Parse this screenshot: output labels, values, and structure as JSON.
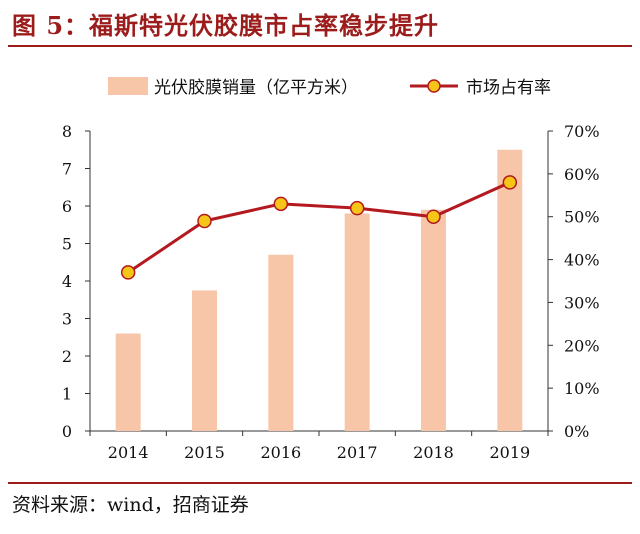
{
  "figure": {
    "title": "图 5：福斯特光伏胶膜市占率稳步提升",
    "source": "资料来源：wind，招商证券"
  },
  "colors": {
    "bar": "#f7c6a8",
    "line": "#b3191f",
    "marker_fill": "#f5c518",
    "accent": "#9c1c1c"
  },
  "chart_data": {
    "type": "bar+line",
    "categories": [
      "2014",
      "2015",
      "2016",
      "2017",
      "2018",
      "2019"
    ],
    "series": [
      {
        "name": "光伏胶膜销量（亿平方米）",
        "type": "bar",
        "axis": "left",
        "values": [
          2.6,
          3.75,
          4.7,
          5.8,
          5.9,
          7.5
        ]
      },
      {
        "name": "市场占有率",
        "type": "line",
        "axis": "right",
        "values": [
          37,
          49,
          53,
          52,
          50,
          58
        ]
      }
    ],
    "y_left": {
      "min": 0,
      "max": 8,
      "ticks": [
        "0",
        "1",
        "2",
        "3",
        "4",
        "5",
        "6",
        "7",
        "8"
      ]
    },
    "y_right": {
      "min": 0,
      "max": 70,
      "ticks": [
        "0%",
        "10%",
        "20%",
        "30%",
        "40%",
        "50%",
        "60%",
        "70%"
      ]
    },
    "grid": false,
    "legend_position": "top"
  }
}
